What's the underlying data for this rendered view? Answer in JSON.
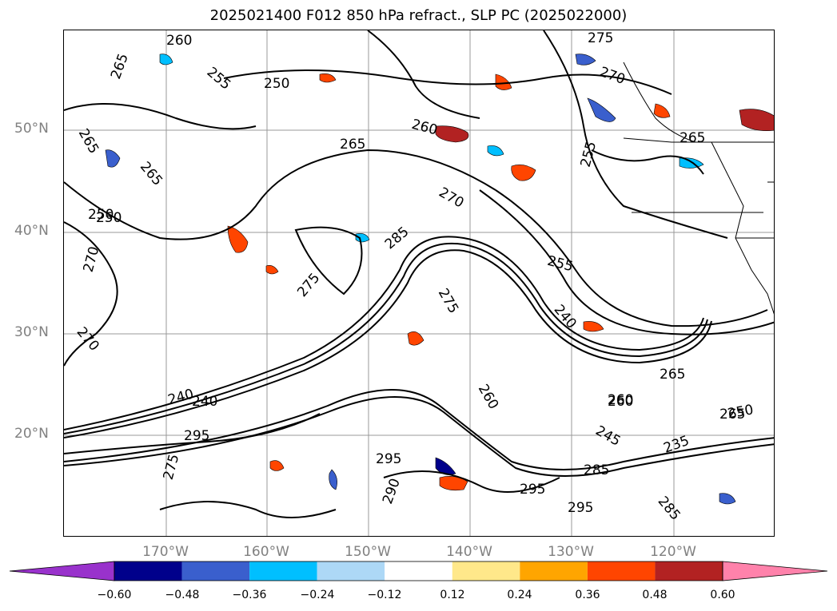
{
  "title": "2025021400 F012 850 hPa refract., SLP PC (2025022000)",
  "lat_labels": [
    "50°N",
    "40°N",
    "30°N",
    "20°N"
  ],
  "lon_labels": [
    "170°W",
    "160°W",
    "150°W",
    "140°W",
    "130°W",
    "120°W"
  ],
  "colorbar": {
    "ticks": [
      "−0.60",
      "−0.48",
      "−0.36",
      "−0.24",
      "−0.12",
      "0.12",
      "0.24",
      "0.36",
      "0.48",
      "0.60"
    ],
    "colors": [
      "#9932CC",
      "#00008B",
      "#3A5FCD",
      "#00BFFF",
      "#ADD8F6",
      "#FFFFFF",
      "#FFE88A",
      "#FFA500",
      "#FF4500",
      "#B22222",
      "#FF82AB"
    ]
  },
  "contour_labels": [
    "260",
    "265",
    "255",
    "250",
    "265",
    "270",
    "275",
    "270",
    "265",
    "260",
    "265",
    "255",
    "285",
    "275",
    "275",
    "270",
    "255",
    "240",
    "265",
    "260",
    "265",
    "250",
    "235",
    "240",
    "245",
    "285",
    "295",
    "295",
    "290",
    "295",
    "275",
    "250",
    "260",
    "250",
    "285",
    "260",
    "240",
    "295",
    "265",
    "270"
  ]
}
